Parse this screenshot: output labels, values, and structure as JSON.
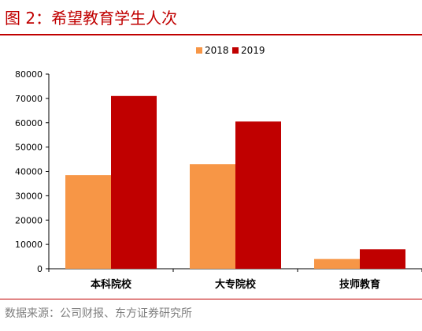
{
  "header": {
    "title": "图 2：希望教育学生人次"
  },
  "footer": {
    "source": "数据来源：公司财报、东方证券研究所"
  },
  "colors": {
    "accent": "#c00000",
    "source_text": "#7f7f7f"
  },
  "chart_data": {
    "type": "bar",
    "title": "",
    "xlabel": "",
    "ylabel": "",
    "categories": [
      "本科院校",
      "大专院校",
      "技师教育"
    ],
    "series": [
      {
        "name": "2018",
        "color": "#f79646",
        "values": [
          38500,
          43000,
          4000
        ]
      },
      {
        "name": "2019",
        "color": "#c00000",
        "values": [
          71000,
          60500,
          8000
        ]
      }
    ],
    "ylim": [
      0,
      80000
    ],
    "yticks": [
      0,
      10000,
      20000,
      30000,
      40000,
      50000,
      60000,
      70000,
      80000
    ],
    "ytick_labels": [
      "0",
      "10000",
      "20000",
      "30000",
      "40000",
      "50000",
      "60000",
      "70000",
      "80000"
    ],
    "grid": false,
    "legend_position": "top"
  }
}
